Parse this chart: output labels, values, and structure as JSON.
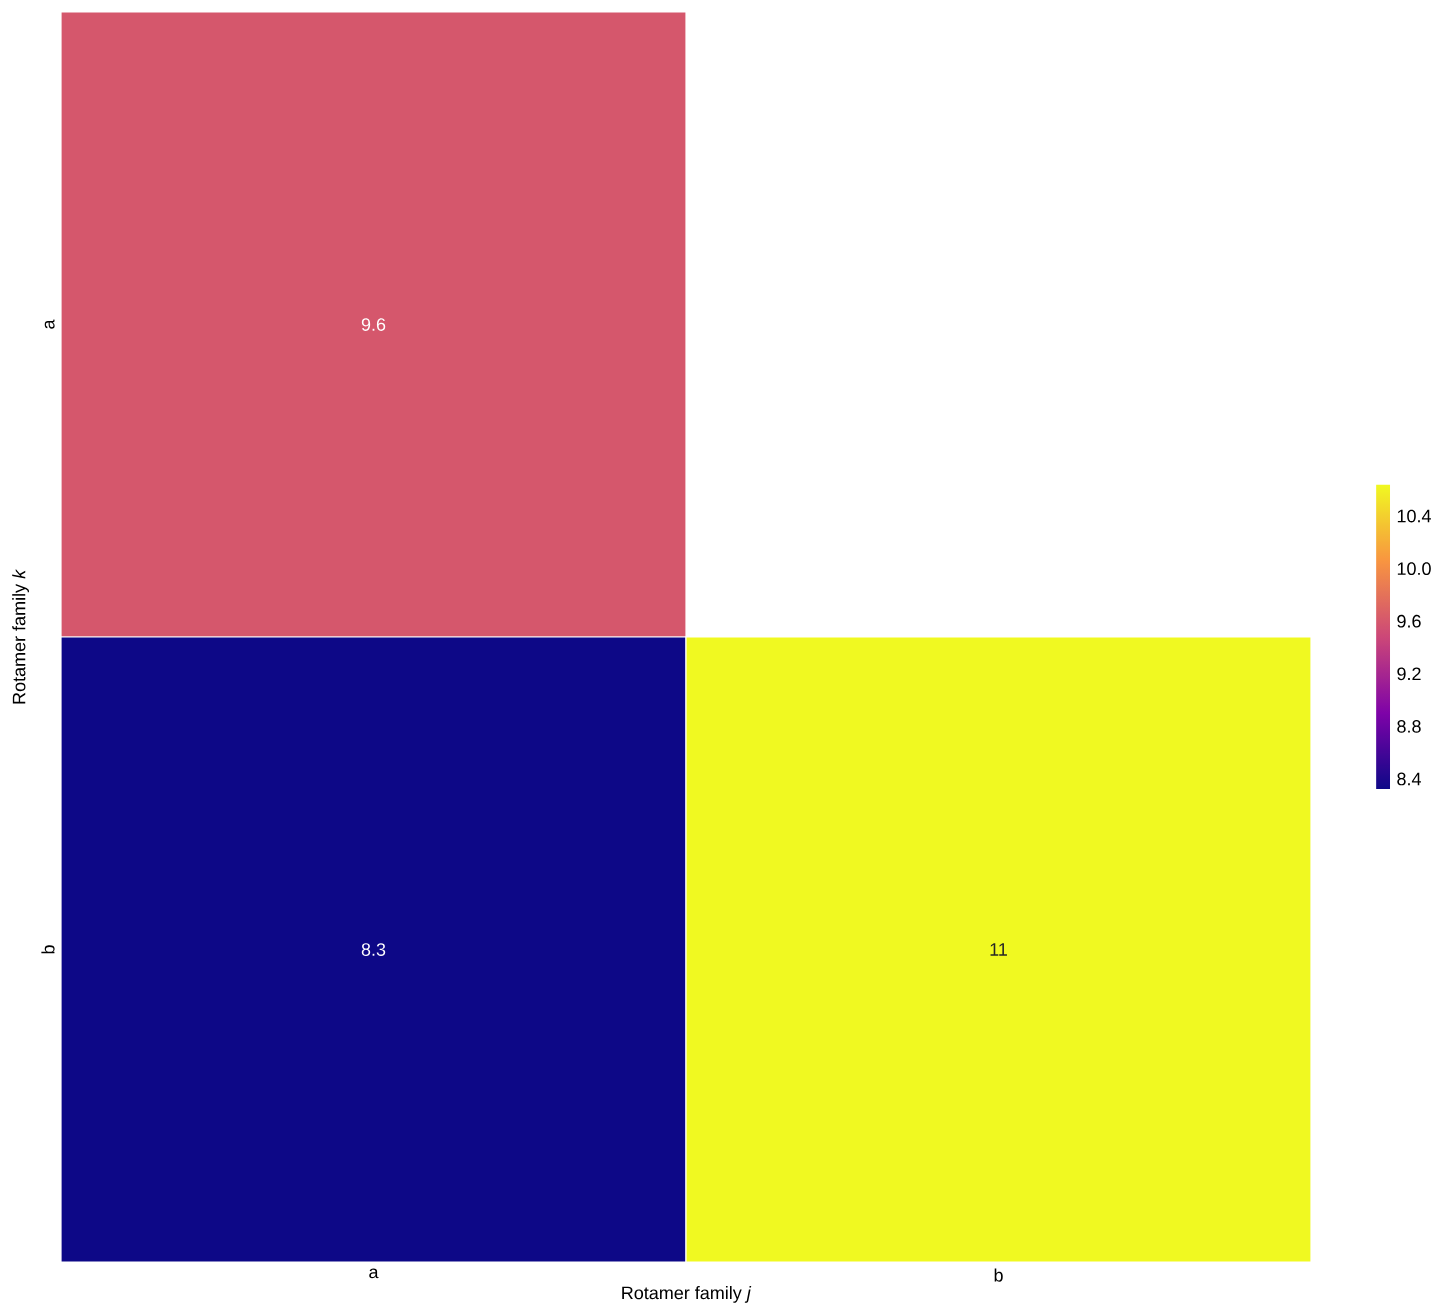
{
  "chart_data": {
    "type": "heatmap",
    "xlabel": "Rotamer family *j*",
    "ylabel": "Rotamer family *k*",
    "categories": [
      "a",
      "b"
    ],
    "y_categories": [
      "a",
      "b"
    ],
    "cells": [
      [
        9.6,
        null
      ],
      [
        8.32,
        10.64
      ]
    ],
    "cell_labels": [
      [
        "9.6",
        null
      ],
      [
        "8.3",
        "11"
      ]
    ],
    "clim": [
      8.32,
      10.64
    ],
    "cticks": [
      8.4,
      8.8,
      9.2,
      9.6,
      {
        "value": 10,
        "label": "10.0"
      },
      10.4
    ]
  }
}
